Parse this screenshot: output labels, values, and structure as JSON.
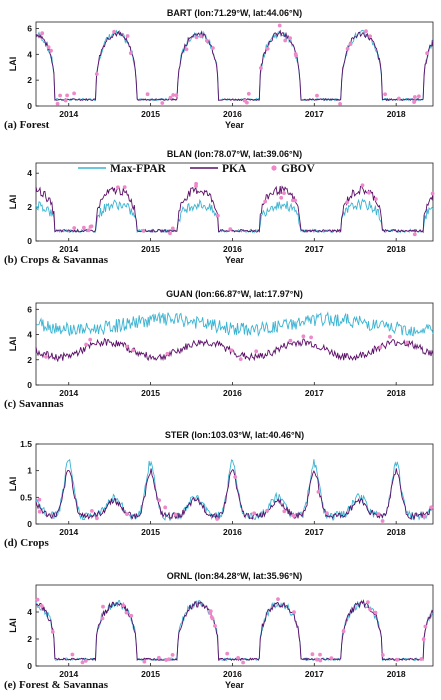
{
  "colors": {
    "max_fpar": "#3cb4d2",
    "pka": "#5c0f68",
    "gbov": "#ee88c8"
  },
  "legend": {
    "items": [
      "Max-FPAR",
      "PKA",
      "GBOV"
    ]
  },
  "chart_data": [
    {
      "type": "line",
      "title": "BART (lon:71.29°W, lat:44.06°N)",
      "panel_label": "(a) Forest",
      "xlabel": "Year",
      "ylabel": "LAI",
      "xlim": [
        2013.6,
        2018.45
      ],
      "ylim": [
        0,
        6.5
      ],
      "xticks": [
        2014,
        2015,
        2016,
        2017,
        2018
      ],
      "yticks": [
        0,
        2,
        4,
        6
      ],
      "profile": {
        "kind": "season",
        "peak": 5.6,
        "base": 0.5,
        "noise": 0.45,
        "gbov_n": 9
      }
    },
    {
      "type": "line",
      "title": "BLAN (lon:78.07°W, lat:39.06°N)",
      "panel_label": "(b) Crops & Savannas",
      "xlabel": "Year",
      "ylabel": "LAI",
      "xlim": [
        2013.6,
        2018.45
      ],
      "ylim": [
        0,
        4.6
      ],
      "xticks": [
        2014,
        2015,
        2016,
        2017,
        2018
      ],
      "yticks": [
        0,
        2,
        4
      ],
      "profile": {
        "kind": "season",
        "peak": 3.0,
        "base": 0.6,
        "noise": 0.5,
        "max_scale": 0.65,
        "gbov_n": 5
      }
    },
    {
      "type": "line",
      "title": "GUAN (lon:66.87°W, lat:17.97°N)",
      "panel_label": "(c) Savannas",
      "xlabel": "",
      "ylabel": "LAI",
      "xlim": [
        2013.6,
        2018.45
      ],
      "ylim": [
        0,
        6.5
      ],
      "xticks": [
        2014,
        2015,
        2016,
        2017,
        2018
      ],
      "yticks": [
        0,
        2,
        4,
        6
      ],
      "profile": {
        "kind": "flat",
        "pka_level": 2.8,
        "max_level": 4.8,
        "noise": 0.6,
        "gbov_n": 3
      }
    },
    {
      "type": "line",
      "title": "STER (lon:103.03°W, lat:40.46°N)",
      "panel_label": "(d) Crops",
      "xlabel": "",
      "ylabel": "LAI",
      "xlim": [
        2013.6,
        2018.45
      ],
      "ylim": [
        0,
        1.5
      ],
      "xticks": [
        2014,
        2015,
        2016,
        2017,
        2018
      ],
      "yticks": [
        0,
        0.5,
        1,
        1.5
      ],
      "profile": {
        "kind": "spiky",
        "peak": 1.0,
        "base": 0.15,
        "noise": 0.12,
        "gbov_n": 4
      }
    },
    {
      "type": "line",
      "title": "ORNL (lon:84.28°W, lat:35.96°N)",
      "panel_label": "(e) Forest & Savannas",
      "xlabel": "Year",
      "ylabel": "LAI",
      "xlim": [
        2013.6,
        2018.45
      ],
      "ylim": [
        0,
        6
      ],
      "xticks": [
        2014,
        2015,
        2016,
        2017,
        2018
      ],
      "yticks": [
        0,
        2,
        4
      ],
      "profile": {
        "kind": "season",
        "peak": 4.6,
        "base": 0.5,
        "noise": 0.5,
        "gbov_n": 8
      }
    }
  ]
}
